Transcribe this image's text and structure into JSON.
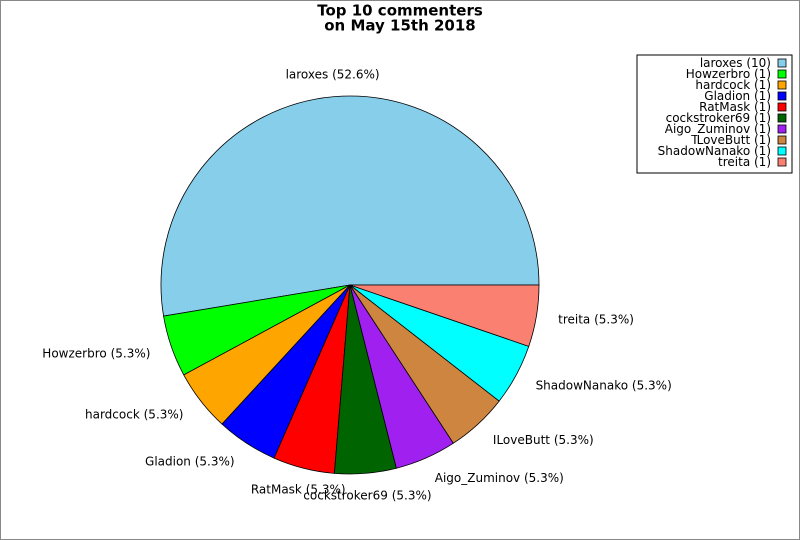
{
  "chart_data": {
    "type": "pie",
    "title": "Top 10 commenters",
    "subtitle": "on May 15th 2018",
    "categories": [
      "laroxes",
      "Howzerbro",
      "hardcock",
      "Gladion",
      "RatMask",
      "cockstroker69",
      "Aigo_Zuminov",
      "ILoveButt",
      "ShadowNanako",
      "treita"
    ],
    "values": [
      10,
      1,
      1,
      1,
      1,
      1,
      1,
      1,
      1,
      1
    ],
    "value_labels": [
      "(10)",
      "(1)",
      "(1)",
      "(1)",
      "(1)",
      "(1)",
      "(1)",
      "(1)",
      "(1)",
      "(1)"
    ],
    "percent_labels": [
      "(52.6%)",
      "(5.3%)",
      "(5.3%)",
      "(5.3%)",
      "(5.3%)",
      "(5.3%)",
      "(5.3%)",
      "(5.3%)",
      "(5.3%)",
      "(5.3%)"
    ],
    "colors": [
      "#87ceeb",
      "#00ff00",
      "#ffa500",
      "#0000ff",
      "#ff0000",
      "#006400",
      "#a020f0",
      "#cd853f",
      "#00ffff",
      "#fa8072"
    ],
    "legend": "upper right"
  }
}
